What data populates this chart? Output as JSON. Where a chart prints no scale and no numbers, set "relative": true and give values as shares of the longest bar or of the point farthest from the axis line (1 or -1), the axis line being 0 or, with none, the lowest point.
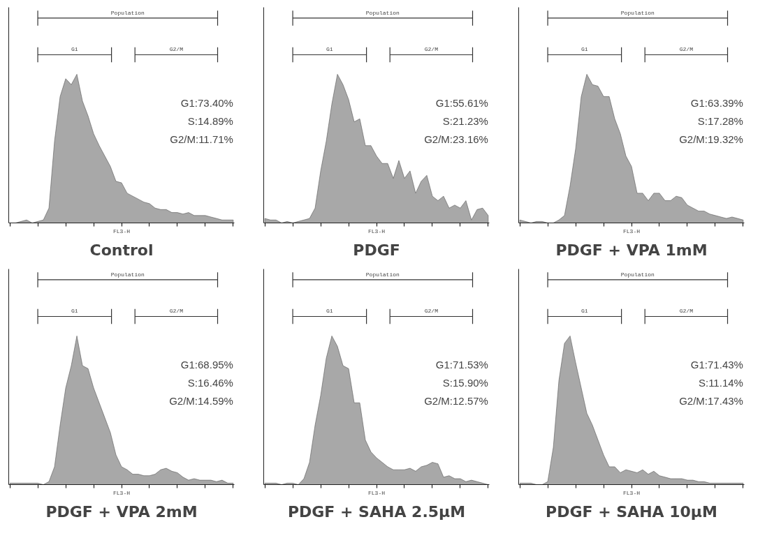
{
  "chart_data": [
    {
      "type": "area",
      "title": "Control",
      "xlabel": "FL3-H",
      "relative": true,
      "tick_labels": false,
      "grid": false,
      "color": "#a8a8a8",
      "categories": [
        null,
        null,
        null,
        null,
        null,
        null,
        null,
        null,
        null,
        null,
        null,
        null,
        null,
        null,
        null,
        null,
        null,
        null,
        null,
        null,
        null,
        null,
        null,
        null,
        null,
        null,
        null,
        null,
        null,
        null,
        null,
        null,
        null,
        null,
        null,
        null,
        null,
        null,
        null,
        null,
        null
      ],
      "values": [
        0,
        0,
        0.01,
        0.02,
        0,
        0.01,
        0.02,
        0.1,
        0.55,
        0.85,
        0.97,
        0.93,
        1.0,
        0.82,
        0.72,
        0.6,
        0.52,
        0.45,
        0.38,
        0.28,
        0.27,
        0.2,
        0.18,
        0.16,
        0.14,
        0.13,
        0.1,
        0.09,
        0.09,
        0.07,
        0.07,
        0.06,
        0.07,
        0.05,
        0.05,
        0.05,
        0.04,
        0.03,
        0.02,
        0.02,
        0.02
      ],
      "annotations": [
        "Population",
        "G1",
        "G2/M",
        "G1:73.40%",
        "S:14.89%",
        "G2/M:11.71%"
      ]
    },
    {
      "type": "area",
      "title": "PDGF",
      "xlabel": "FL3-H",
      "relative": true,
      "tick_labels": false,
      "grid": false,
      "color": "#a8a8a8",
      "categories": [
        null,
        null,
        null,
        null,
        null,
        null,
        null,
        null,
        null,
        null,
        null,
        null,
        null,
        null,
        null,
        null,
        null,
        null,
        null,
        null,
        null,
        null,
        null,
        null,
        null,
        null,
        null,
        null,
        null,
        null,
        null,
        null,
        null,
        null,
        null,
        null,
        null,
        null,
        null,
        null,
        null
      ],
      "values": [
        0.03,
        0.02,
        0.02,
        0,
        0.01,
        0,
        0.01,
        0.02,
        0.03,
        0.1,
        0.35,
        0.55,
        0.8,
        1.0,
        0.93,
        0.83,
        0.68,
        0.7,
        0.52,
        0.52,
        0.45,
        0.4,
        0.4,
        0.3,
        0.42,
        0.3,
        0.35,
        0.2,
        0.28,
        0.32,
        0.18,
        0.15,
        0.18,
        0.1,
        0.12,
        0.1,
        0.15,
        0.02,
        0.09,
        0.1,
        0.05
      ],
      "annotations": [
        "Population",
        "G1",
        "G2/M",
        "G1:55.61%",
        "S:21.23%",
        "G2/M:23.16%"
      ]
    },
    {
      "type": "area",
      "title": "PDGF + VPA 1mM",
      "xlabel": "FL3-H",
      "relative": true,
      "tick_labels": false,
      "grid": false,
      "color": "#a8a8a8",
      "categories": [
        null,
        null,
        null,
        null,
        null,
        null,
        null,
        null,
        null,
        null,
        null,
        null,
        null,
        null,
        null,
        null,
        null,
        null,
        null,
        null,
        null,
        null,
        null,
        null,
        null,
        null,
        null,
        null,
        null,
        null,
        null,
        null,
        null,
        null,
        null,
        null,
        null,
        null,
        null,
        null,
        null
      ],
      "values": [
        0.02,
        0.01,
        0,
        0.01,
        0.01,
        0,
        0,
        0.02,
        0.05,
        0.25,
        0.5,
        0.85,
        1.0,
        0.93,
        0.92,
        0.85,
        0.85,
        0.7,
        0.6,
        0.45,
        0.38,
        0.2,
        0.2,
        0.15,
        0.2,
        0.2,
        0.15,
        0.15,
        0.18,
        0.17,
        0.12,
        0.1,
        0.08,
        0.08,
        0.06,
        0.05,
        0.04,
        0.03,
        0.04,
        0.03,
        0.02
      ],
      "annotations": [
        "Population",
        "G1",
        "G2/M",
        "G1:63.39%",
        "S:17.28%",
        "G2/M:19.32%"
      ]
    },
    {
      "type": "area",
      "title": "PDGF + VPA 2mM",
      "xlabel": "FL3-H",
      "relative": true,
      "tick_labels": false,
      "grid": false,
      "color": "#a8a8a8",
      "categories": [
        null,
        null,
        null,
        null,
        null,
        null,
        null,
        null,
        null,
        null,
        null,
        null,
        null,
        null,
        null,
        null,
        null,
        null,
        null,
        null,
        null,
        null,
        null,
        null,
        null,
        null,
        null,
        null,
        null,
        null,
        null,
        null,
        null,
        null,
        null,
        null,
        null,
        null,
        null,
        null,
        null
      ],
      "values": [
        0.01,
        0.01,
        0.01,
        0.01,
        0.01,
        0.01,
        0,
        0.02,
        0.12,
        0.4,
        0.65,
        0.8,
        1.0,
        0.8,
        0.78,
        0.65,
        0.55,
        0.45,
        0.35,
        0.2,
        0.12,
        0.1,
        0.07,
        0.07,
        0.06,
        0.06,
        0.07,
        0.1,
        0.11,
        0.09,
        0.08,
        0.05,
        0.03,
        0.04,
        0.03,
        0.03,
        0.03,
        0.02,
        0.03,
        0.01,
        0.01
      ],
      "annotations": [
        "Population",
        "G1",
        "G2/M",
        "G1:68.95%",
        "S:16.46%",
        "G2/M:14.59%"
      ]
    },
    {
      "type": "area",
      "title": "PDGF + SAHA 2.5μM",
      "xlabel": "FL3-H",
      "relative": true,
      "tick_labels": false,
      "grid": false,
      "color": "#a8a8a8",
      "categories": [
        null,
        null,
        null,
        null,
        null,
        null,
        null,
        null,
        null,
        null,
        null,
        null,
        null,
        null,
        null,
        null,
        null,
        null,
        null,
        null,
        null,
        null,
        null,
        null,
        null,
        null,
        null,
        null,
        null,
        null,
        null,
        null,
        null,
        null,
        null,
        null,
        null,
        null,
        null,
        null,
        null
      ],
      "values": [
        0.01,
        0.01,
        0.01,
        0,
        0.01,
        0.01,
        0,
        0.04,
        0.15,
        0.4,
        0.6,
        0.85,
        1.0,
        0.93,
        0.8,
        0.78,
        0.55,
        0.55,
        0.3,
        0.22,
        0.18,
        0.15,
        0.12,
        0.1,
        0.1,
        0.1,
        0.11,
        0.09,
        0.12,
        0.13,
        0.15,
        0.14,
        0.05,
        0.06,
        0.04,
        0.04,
        0.02,
        0.03,
        0.02,
        0.01,
        0
      ],
      "annotations": [
        "Population",
        "G1",
        "G2/M",
        "G1:71.53%",
        "S:15.90%",
        "G2/M:12.57%"
      ]
    },
    {
      "type": "area",
      "title": "PDGF + SAHA 10μM",
      "xlabel": "FL3-H",
      "relative": true,
      "tick_labels": false,
      "grid": false,
      "color": "#a8a8a8",
      "categories": [
        null,
        null,
        null,
        null,
        null,
        null,
        null,
        null,
        null,
        null,
        null,
        null,
        null,
        null,
        null,
        null,
        null,
        null,
        null,
        null,
        null,
        null,
        null,
        null,
        null,
        null,
        null,
        null,
        null,
        null,
        null,
        null,
        null,
        null,
        null,
        null,
        null,
        null,
        null,
        null,
        null
      ],
      "values": [
        0.01,
        0.01,
        0.01,
        0,
        0,
        0.02,
        0.25,
        0.7,
        0.95,
        1.0,
        0.82,
        0.65,
        0.48,
        0.4,
        0.3,
        0.2,
        0.12,
        0.12,
        0.08,
        0.1,
        0.09,
        0.08,
        0.1,
        0.07,
        0.09,
        0.06,
        0.05,
        0.04,
        0.04,
        0.04,
        0.03,
        0.03,
        0.02,
        0.02,
        0.01,
        0.01,
        0.01,
        0.01,
        0.01,
        0.01,
        0.01
      ],
      "annotations": [
        "Population",
        "G1",
        "G2/M",
        "G1:71.43%",
        "S:11.14%",
        "G2/M:17.43%"
      ]
    }
  ]
}
